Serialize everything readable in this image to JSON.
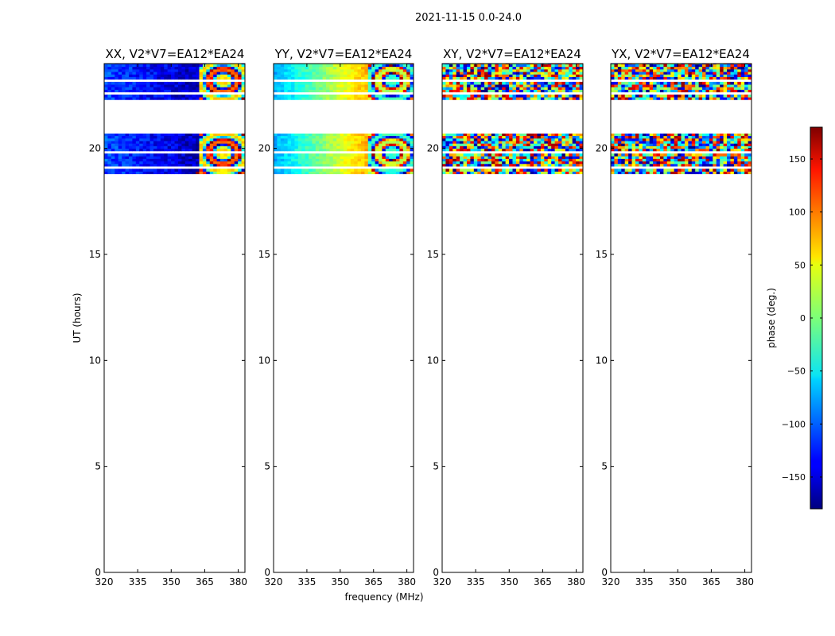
{
  "chart_data": {
    "type": "heatmap",
    "suptitle": "2021-11-15 0.0-24.0",
    "xlabel": "frequency (MHz)",
    "ylabel": "UT (hours)",
    "xlim": [
      320,
      383
    ],
    "ylim": [
      0,
      24
    ],
    "xticks": [
      320,
      335,
      350,
      365,
      380
    ],
    "yticks": [
      0,
      5,
      10,
      15,
      20
    ],
    "observed_blocks_ut": [
      [
        18.8,
        20.7
      ],
      [
        22.3,
        24.0
      ]
    ],
    "gap_rows_ut": [
      19.0,
      19.75,
      22.5,
      23.15
    ],
    "fringe_start_mhz": 362,
    "panels": [
      {
        "title": "XX, V2*V7=EA12*EA24",
        "mean_phase_deg": -135,
        "phase_drift_deg": -50,
        "noise_deg": 25,
        "fringe_end_phase_deg": -100
      },
      {
        "title": "YY, V2*V7=EA12*EA24",
        "mean_phase_deg": 0,
        "phase_drift_deg": 150,
        "noise_deg": 15,
        "fringe_end_phase_deg": 178
      },
      {
        "title": "XY, V2*V7=EA12*EA24",
        "mean_phase_deg": 0,
        "phase_drift_deg": 0,
        "noise_deg": 180,
        "fringe_end_phase_deg": 0
      },
      {
        "title": "YX, V2*V7=EA12*EA24",
        "mean_phase_deg": 0,
        "phase_drift_deg": 0,
        "noise_deg": 180,
        "fringe_end_phase_deg": 0
      }
    ],
    "colorbar": {
      "label": "phase (deg.)",
      "range": [
        -180,
        180
      ],
      "ticks": [
        -150,
        -100,
        -50,
        0,
        50,
        100,
        150
      ],
      "tick_labels": [
        "−150",
        "−100",
        "−50",
        "0",
        "50",
        "100",
        "150"
      ],
      "colormap": "jet"
    }
  }
}
